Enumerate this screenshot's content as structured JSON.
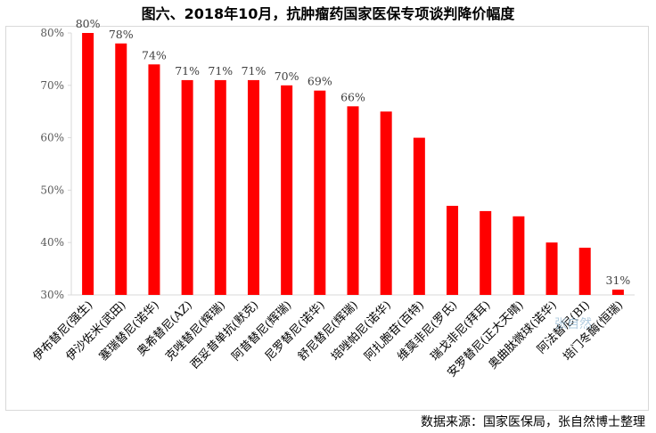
{
  "title": "图六、2018年10月，抗肿瘤药国家医保专项谈判降价幅度",
  "source": "数据来源：国家医保局，张自然博士整理",
  "watermark": "张自然",
  "colors": {
    "bar": "#ff0000",
    "axis": "#d9d9d9",
    "text": "#000000"
  },
  "chart_data": {
    "type": "bar",
    "title": "图六、2018年10月，抗肿瘤药国家医保专项谈判降价幅度",
    "xlabel": "",
    "ylabel": "",
    "ylim": [
      30,
      80
    ],
    "yticks": [
      "30%",
      "40%",
      "50%",
      "60%",
      "70%",
      "80%"
    ],
    "grid": false,
    "legend": "none",
    "categories": [
      "伊布替尼(强生)",
      "伊沙佐米(武田)",
      "塞瑞替尼(诺华)",
      "奥希替尼(AZ)",
      "克唑替尼(辉瑞)",
      "西妥昔单抗(默克)",
      "阿昔替尼(辉瑞)",
      "尼罗替尼(诺华)",
      "舒尼替尼(辉瑞)",
      "培唑帕尼(诺华)",
      "阿扎胞苷(百特)",
      "维莫非尼(罗氏)",
      "瑞戈非尼(拜耳)",
      "安罗替尼(正大天晴)",
      "奥曲肽微球(诺华)",
      "阿法替尼(BI)",
      "培门冬酶(恒瑞)"
    ],
    "values": [
      80,
      78,
      74,
      71,
      71,
      71,
      70,
      69,
      66,
      65,
      60,
      47,
      46,
      45,
      40,
      39,
      31
    ],
    "data_labels": [
      "80%",
      "78%",
      "74%",
      "71%",
      "71%",
      "71%",
      "70%",
      "69%",
      "66%",
      "",
      "",
      "",
      "",
      "",
      "",
      "",
      "31%"
    ]
  }
}
